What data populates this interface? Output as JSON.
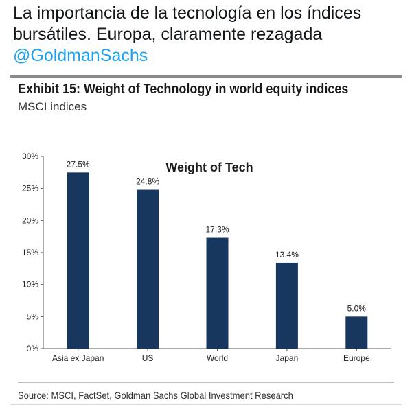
{
  "tweet": {
    "text": "La importancia de la tecnología en los índices bursátiles. Europa, claramente rezagada ",
    "mention": "@GoldmanSachs"
  },
  "exhibit": {
    "title": "Exhibit 15: Weight of Technology in world equity indices",
    "subtitle": "MSCI indices",
    "source": "Source: MSCI, FactSet, Goldman Sachs Global Investment Research"
  },
  "colors": {
    "bar": "#17375e",
    "axis": "#555555",
    "mention": "#1da1f2"
  },
  "chart_data": {
    "type": "bar",
    "title": "Weight of Tech",
    "xlabel": "",
    "ylabel": "",
    "categories": [
      "Asia ex Japan",
      "US",
      "World",
      "Japan",
      "Europe"
    ],
    "values": [
      27.5,
      24.8,
      17.3,
      13.4,
      5.0
    ],
    "data_labels": [
      "27.5%",
      "24.8%",
      "17.3%",
      "13.4%",
      "5.0%"
    ],
    "ylim": [
      0,
      30
    ],
    "yticks": [
      0,
      5,
      10,
      15,
      20,
      25,
      30
    ],
    "ytick_labels": [
      "0%",
      "5%",
      "10%",
      "15%",
      "20%",
      "25%",
      "30%"
    ],
    "grid": false,
    "legend": "none"
  }
}
